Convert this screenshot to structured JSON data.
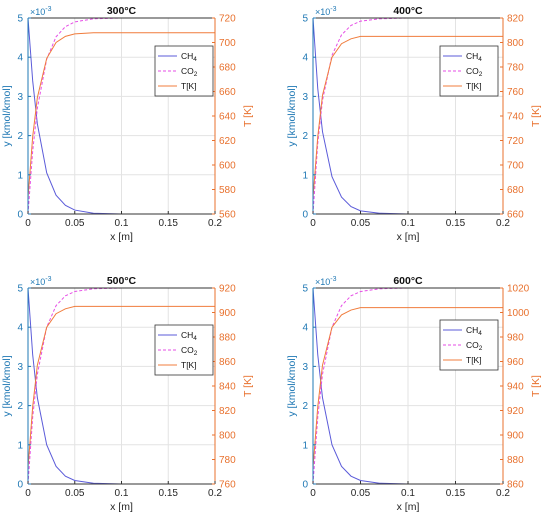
{
  "colors": {
    "ch4": "#5b5bd9",
    "co2": "#e64ee6",
    "temp": "#f07c3c",
    "left_axis": "#1f78b4",
    "right_axis": "#e8712e",
    "grid": "#e3e3e3",
    "axis_black": "#333333"
  },
  "chart_data": [
    {
      "type": "line",
      "title": "300°C",
      "xlabel": "x [m]",
      "ylabel_left": "y [kmol/kmol]",
      "ylabel_right": "T [K]",
      "exponent_label": "×10",
      "exponent_power": "-3",
      "xlim": [
        0,
        0.2
      ],
      "ylim_left": [
        0,
        5
      ],
      "ylim_right": [
        560,
        720
      ],
      "xticks": [
        "0",
        "0.05",
        "0.1",
        "0.15",
        "0.2"
      ],
      "yticks_left": [
        "0",
        "1",
        "2",
        "3",
        "4",
        "5"
      ],
      "yticks_right": [
        "560",
        "580",
        "600",
        "620",
        "640",
        "660",
        "680",
        "700",
        "720"
      ],
      "grid": true,
      "legend_position": "right",
      "series": [
        {
          "name": "CH",
          "name_sub": "4",
          "axis": "left",
          "style": "solid",
          "color_key": "ch4",
          "x": [
            0,
            0.005,
            0.01,
            0.02,
            0.03,
            0.04,
            0.05,
            0.07,
            0.1,
            0.15,
            0.2
          ],
          "y": [
            5,
            3.4,
            2.3,
            1.05,
            0.48,
            0.22,
            0.1,
            0.02,
            0,
            0,
            0
          ]
        },
        {
          "name": "CO",
          "name_sub": "2",
          "axis": "left",
          "style": "dashed",
          "color_key": "co2",
          "x": [
            0,
            0.005,
            0.01,
            0.02,
            0.03,
            0.04,
            0.05,
            0.07,
            0.1,
            0.15,
            0.2
          ],
          "y": [
            0,
            1.6,
            2.7,
            3.95,
            4.52,
            4.78,
            4.9,
            4.98,
            5,
            5,
            5
          ]
        },
        {
          "name": "T[K]",
          "name_sub": "",
          "axis": "right",
          "style": "solid",
          "color_key": "temp",
          "x": [
            0,
            0.005,
            0.01,
            0.02,
            0.03,
            0.04,
            0.05,
            0.07,
            0.1,
            0.15,
            0.2
          ],
          "y": [
            573,
            623,
            655,
            687,
            700,
            705,
            707,
            708,
            708,
            708,
            708
          ]
        }
      ]
    },
    {
      "type": "line",
      "title": "400°C",
      "xlabel": "x [m]",
      "ylabel_left": "y [kmol/kmol]",
      "ylabel_right": "T [K]",
      "exponent_label": "×10",
      "exponent_power": "-3",
      "xlim": [
        0,
        0.2
      ],
      "ylim_left": [
        0,
        5
      ],
      "ylim_right": [
        660,
        820
      ],
      "xticks": [
        "0",
        "0.05",
        "0.1",
        "0.15",
        "0.2"
      ],
      "yticks_left": [
        "0",
        "1",
        "2",
        "3",
        "4",
        "5"
      ],
      "yticks_right": [
        "660",
        "680",
        "700",
        "720",
        "740",
        "760",
        "780",
        "800",
        "820"
      ],
      "grid": true,
      "legend_position": "right",
      "series": [
        {
          "name": "CH",
          "name_sub": "4",
          "axis": "left",
          "style": "solid",
          "color_key": "ch4",
          "x": [
            0,
            0.005,
            0.01,
            0.02,
            0.03,
            0.04,
            0.05,
            0.07,
            0.1,
            0.15,
            0.2
          ],
          "y": [
            5,
            3.2,
            2.1,
            0.95,
            0.43,
            0.19,
            0.08,
            0.02,
            0,
            0,
            0
          ]
        },
        {
          "name": "CO",
          "name_sub": "2",
          "axis": "left",
          "style": "dashed",
          "color_key": "co2",
          "x": [
            0,
            0.005,
            0.01,
            0.02,
            0.03,
            0.04,
            0.05,
            0.07,
            0.1,
            0.15,
            0.2
          ],
          "y": [
            0,
            1.8,
            2.9,
            4.05,
            4.57,
            4.81,
            4.92,
            4.98,
            5,
            5,
            5
          ]
        },
        {
          "name": "T[K]",
          "name_sub": "",
          "axis": "right",
          "style": "solid",
          "color_key": "temp",
          "x": [
            0,
            0.005,
            0.01,
            0.02,
            0.03,
            0.04,
            0.05,
            0.07,
            0.1,
            0.15,
            0.2
          ],
          "y": [
            673,
            723,
            757,
            788,
            799,
            803,
            805,
            805,
            805,
            805,
            805
          ]
        }
      ]
    },
    {
      "type": "line",
      "title": "500°C",
      "xlabel": "x [m]",
      "ylabel_left": "y [kmol/kmol]",
      "ylabel_right": "T [K]",
      "exponent_label": "×10",
      "exponent_power": "-3",
      "xlim": [
        0,
        0.2
      ],
      "ylim_left": [
        0,
        5
      ],
      "ylim_right": [
        760,
        920
      ],
      "xticks": [
        "0",
        "0.05",
        "0.1",
        "0.15",
        "0.2"
      ],
      "yticks_left": [
        "0",
        "1",
        "2",
        "3",
        "4",
        "5"
      ],
      "yticks_right": [
        "760",
        "780",
        "800",
        "820",
        "840",
        "860",
        "880",
        "900",
        "920"
      ],
      "grid": true,
      "legend_position": "right",
      "series": [
        {
          "name": "CH",
          "name_sub": "4",
          "axis": "left",
          "style": "solid",
          "color_key": "ch4",
          "x": [
            0,
            0.005,
            0.01,
            0.02,
            0.03,
            0.04,
            0.05,
            0.07,
            0.1,
            0.15,
            0.2
          ],
          "y": [
            5,
            3.3,
            2.2,
            1.0,
            0.45,
            0.2,
            0.09,
            0.02,
            0,
            0,
            0
          ]
        },
        {
          "name": "CO",
          "name_sub": "2",
          "axis": "left",
          "style": "dashed",
          "color_key": "co2",
          "x": [
            0,
            0.005,
            0.01,
            0.02,
            0.03,
            0.04,
            0.05,
            0.07,
            0.1,
            0.15,
            0.2
          ],
          "y": [
            0,
            1.7,
            2.8,
            4.0,
            4.55,
            4.8,
            4.91,
            4.98,
            5,
            5,
            5
          ]
        },
        {
          "name": "T[K]",
          "name_sub": "",
          "axis": "right",
          "style": "solid",
          "color_key": "temp",
          "x": [
            0,
            0.005,
            0.01,
            0.02,
            0.03,
            0.04,
            0.05,
            0.07,
            0.1,
            0.15,
            0.2
          ],
          "y": [
            773,
            823,
            857,
            888,
            899,
            903,
            905,
            905,
            905,
            905,
            905
          ]
        }
      ]
    },
    {
      "type": "line",
      "title": "600°C",
      "xlabel": "x [m]",
      "ylabel_left": "y [kmol/kmol]",
      "ylabel_right": "T [K]",
      "exponent_label": "×10",
      "exponent_power": "-3",
      "xlim": [
        0,
        0.2
      ],
      "ylim_left": [
        0,
        5
      ],
      "ylim_right": [
        860,
        1020
      ],
      "xticks": [
        "0",
        "0.05",
        "0.1",
        "0.15",
        "0.2"
      ],
      "yticks_left": [
        "0",
        "1",
        "2",
        "3",
        "4",
        "5"
      ],
      "yticks_right": [
        "860",
        "880",
        "900",
        "920",
        "940",
        "960",
        "980",
        "1000",
        "1020"
      ],
      "grid": true,
      "legend_position": "right",
      "series": [
        {
          "name": "CH",
          "name_sub": "4",
          "axis": "left",
          "style": "solid",
          "color_key": "ch4",
          "x": [
            0,
            0.005,
            0.01,
            0.02,
            0.03,
            0.04,
            0.05,
            0.07,
            0.1,
            0.15,
            0.2
          ],
          "y": [
            5,
            3.3,
            2.2,
            1.0,
            0.45,
            0.2,
            0.09,
            0.02,
            0,
            0,
            0
          ]
        },
        {
          "name": "CO",
          "name_sub": "2",
          "axis": "left",
          "style": "dashed",
          "color_key": "co2",
          "x": [
            0,
            0.005,
            0.01,
            0.02,
            0.03,
            0.04,
            0.05,
            0.07,
            0.1,
            0.15,
            0.2
          ],
          "y": [
            0,
            1.7,
            2.8,
            4.0,
            4.55,
            4.8,
            4.91,
            4.98,
            5,
            5,
            5
          ]
        },
        {
          "name": "T[K]",
          "name_sub": "",
          "axis": "right",
          "style": "solid",
          "color_key": "temp",
          "x": [
            0,
            0.005,
            0.01,
            0.02,
            0.03,
            0.04,
            0.05,
            0.07,
            0.1,
            0.15,
            0.2
          ],
          "y": [
            873,
            923,
            957,
            988,
            998,
            1002,
            1004,
            1004,
            1004,
            1004,
            1004
          ]
        }
      ]
    }
  ]
}
